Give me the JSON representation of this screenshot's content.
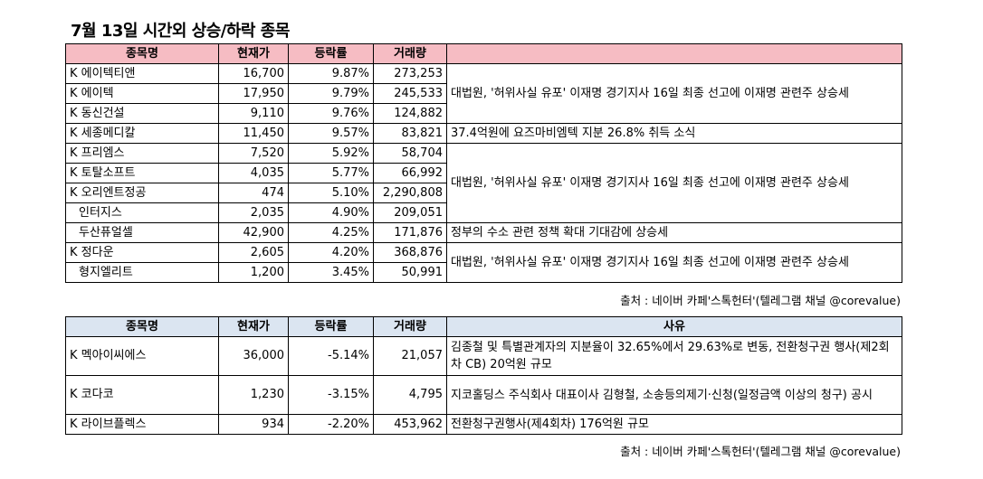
{
  "title": "7월 13일   시간외 상승/하락 종목",
  "headers": {
    "name": "종목명",
    "price": "현재가",
    "change": "등락률",
    "volume": "거래량",
    "reason": "사유"
  },
  "gainers": [
    {
      "name": "K 에이텍티앤",
      "price": "16,700",
      "change": "9.87%",
      "volume": "273,253"
    },
    {
      "name": "K 에이텍",
      "price": "17,950",
      "change": "9.79%",
      "volume": "245,533"
    },
    {
      "name": "K 동신건설",
      "price": "9,110",
      "change": "9.76%",
      "volume": "124,882"
    },
    {
      "name": "K 세종메디칼",
      "price": "11,450",
      "change": "9.57%",
      "volume": "83,821"
    },
    {
      "name": "K 프리엠스",
      "price": "7,520",
      "change": "5.92%",
      "volume": "58,704"
    },
    {
      "name": "K 토탈소프트",
      "price": "4,035",
      "change": "5.77%",
      "volume": "66,992"
    },
    {
      "name": "K 오리엔트정공",
      "price": "474",
      "change": "5.10%",
      "volume": "2,290,808"
    },
    {
      "name": "인터지스",
      "price": "2,035",
      "change": "4.90%",
      "volume": "209,051"
    },
    {
      "name": "두산퓨얼셀",
      "price": "42,900",
      "change": "4.25%",
      "volume": "171,876"
    },
    {
      "name": "K 정다운",
      "price": "2,605",
      "change": "4.20%",
      "volume": "368,876"
    },
    {
      "name": "형지엘리트",
      "price": "1,200",
      "change": "3.45%",
      "volume": "50,991"
    }
  ],
  "gainer_reasons": {
    "group1": "대법원, '허위사실 유포' 이재명 경기지사 16일 최종 선고에 이재명 관련주 상승세",
    "sejong": "37.4억원에 요즈마비엠텍 지분 26.8% 취득 소식",
    "group2": "대법원, '허위사실 유포' 이재명 경기지사 16일 최종 선고에 이재명 관련주 상승세",
    "doosan": "정부의 수소 관련 정책 확대 기대감에 상승세",
    "group3": "대법원, '허위사실 유포' 이재명 경기지사 16일 최종 선고에 이재명 관련주 상승세"
  },
  "losers": [
    {
      "name": "K 멕아이씨에스",
      "price": "36,000",
      "change": "-5.14%",
      "volume": "21,057",
      "reason": "김종철 및 특별관계자의 지분율이 32.65%에서 29.63%로 변동, 전환청구권 행사(제2회차 CB) 20억원 규모"
    },
    {
      "name": "K 코다코",
      "price": "1,230",
      "change": "-3.15%",
      "volume": "4,795",
      "reason": "지코홀딩스 주식회사 대표이사 김형철, 소송등의제기·신청(일정금액 이상의 청구) 공시"
    },
    {
      "name": "K 라이브플렉스",
      "price": "934",
      "change": "-2.20%",
      "volume": "453,962",
      "reason": "전환청구권행사(제4회차) 176억원 규모"
    }
  ],
  "source": "출처 : 네이버 카페'스톡헌터'(텔레그램 채널 @corevalue)",
  "colors": {
    "gain_header": "#f6bcc3",
    "loss_header": "#dbe5f1"
  }
}
